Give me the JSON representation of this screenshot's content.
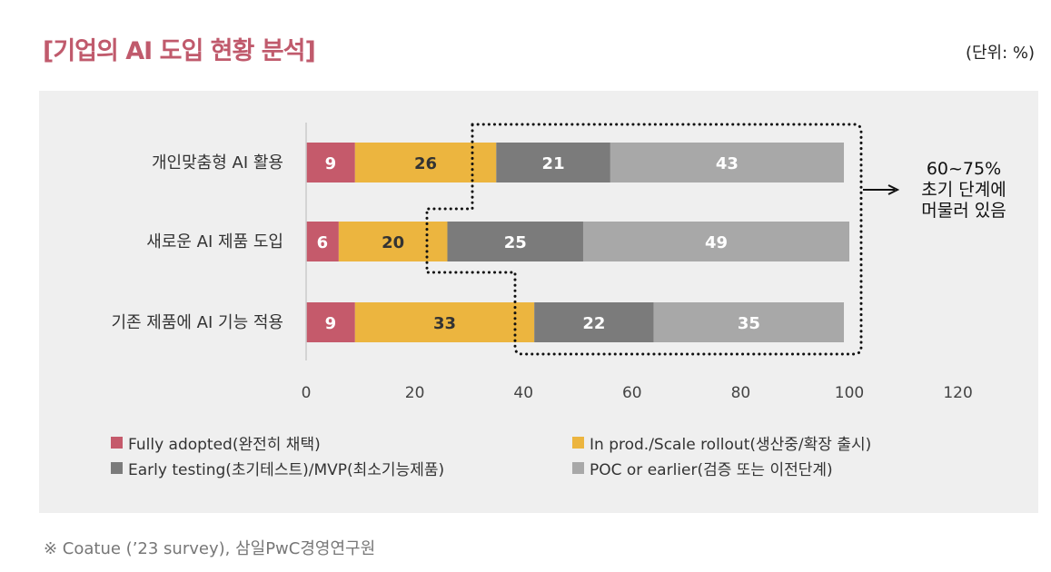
{
  "title": "[기업의 AI 도입 현황 분석]",
  "unit": "(단위: %)",
  "footnote": "※ Coatue (’23 survey), 삼일PwC경영연구원",
  "annotation": {
    "line1": "60~75%",
    "line2": "초기 단계에",
    "line3": "머물러 있음"
  },
  "colors": [
    "#c55a6b",
    "#ecb53f",
    "#7b7b7b",
    "#a8a8a8"
  ],
  "chart_data": {
    "type": "bar",
    "orientation": "horizontal",
    "stacked": true,
    "categories": [
      "개인맞춤형 AI 활용",
      "새로운 AI 제품 도입",
      "기존 제품에 AI 기능 적용"
    ],
    "series": [
      {
        "name": "Fully adopted(완전히 채택)",
        "values": [
          9,
          6,
          9
        ]
      },
      {
        "name": "In prod./Scale rollout(생산중/확장 출시)",
        "values": [
          26,
          20,
          33
        ]
      },
      {
        "name": "Early testing(초기테스트)/MVP(최소기능제품)",
        "values": [
          21,
          25,
          22
        ]
      },
      {
        "name": "POC or earlier(검증 또는 이전단계)",
        "values": [
          43,
          49,
          35
        ]
      }
    ],
    "xlim": [
      0,
      120
    ],
    "xticks": [
      "0",
      "20",
      "40",
      "60",
      "80",
      "100",
      "120"
    ],
    "legend": "bottom",
    "grid": false
  }
}
